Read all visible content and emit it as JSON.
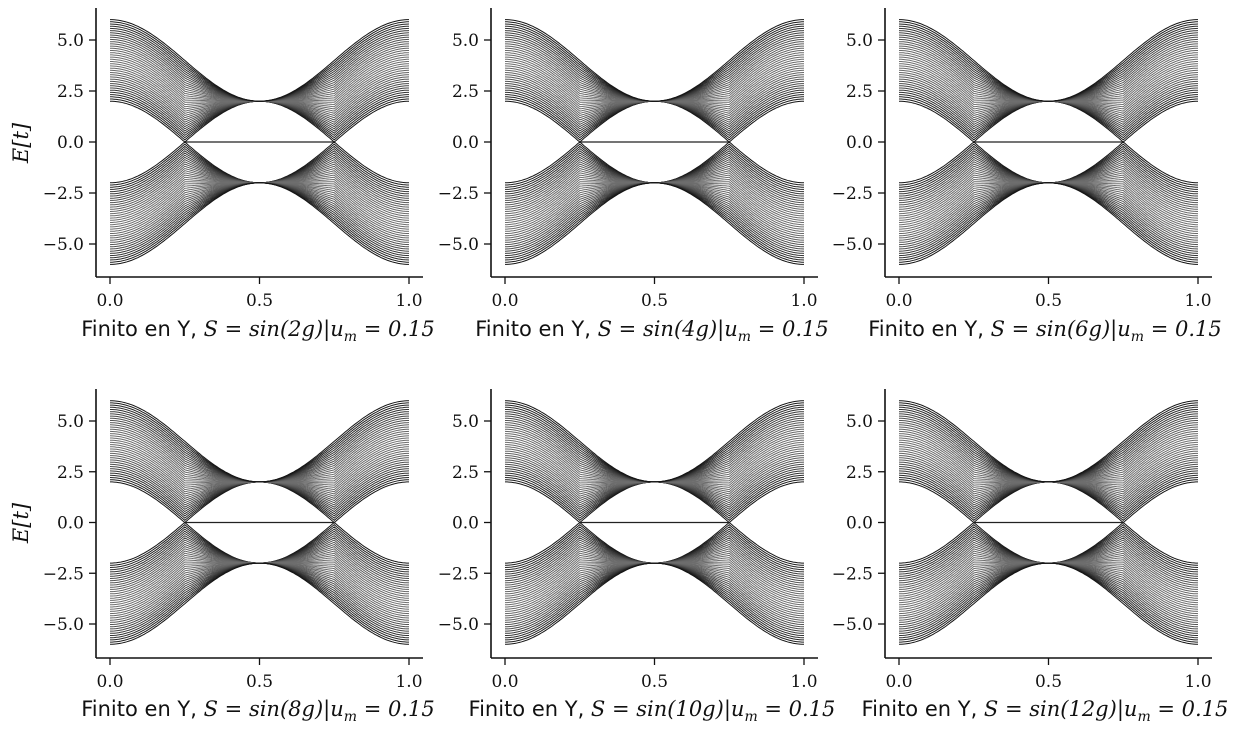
{
  "chart_data": [
    {
      "type": "line",
      "xlabel_prefix": "Finito en Y, ",
      "xlabel_math": "S = sin(2g)|u",
      "xlabel_sub": "m",
      "xlabel_suffix": " = 0.15",
      "ylabel": "E[t]",
      "harmonic": 2,
      "xlim": [
        0,
        1
      ],
      "ylim": [
        -6.6,
        6.6
      ],
      "xticks": [
        0.0,
        0.5,
        1.0
      ],
      "xtick_labels": [
        "0.0",
        "0.5",
        "1.0"
      ],
      "yticks": [
        5.0,
        2.5,
        0.0,
        -2.5,
        -5.0
      ],
      "ytick_labels": [
        "5.0",
        "2.5",
        "0.0",
        "−2.5",
        "−5.0"
      ],
      "band": {
        "inner_edge_center": 2.0,
        "inner_edge_outer": 2.0,
        "outer_edge_center": 2.0,
        "outer_edge_outer": 6.0,
        "gap_close_x": [
          0.25,
          0.75
        ]
      },
      "edge_state": {
        "value": 0.0,
        "x_range": [
          0.25,
          0.75
        ]
      },
      "line_color": "#000000"
    },
    {
      "type": "line",
      "xlabel_prefix": "Finito en Y, ",
      "xlabel_math": "S = sin(4g)|u",
      "xlabel_sub": "m",
      "xlabel_suffix": " = 0.15",
      "ylabel": "",
      "harmonic": 4,
      "xlim": [
        0,
        1
      ],
      "ylim": [
        -6.6,
        6.6
      ],
      "xticks": [
        0.0,
        0.5,
        1.0
      ],
      "xtick_labels": [
        "0.0",
        "0.5",
        "1.0"
      ],
      "yticks": [
        5.0,
        2.5,
        0.0,
        -2.5,
        -5.0
      ],
      "ytick_labels": [
        "5.0",
        "2.5",
        "0.0",
        "−2.5",
        "−5.0"
      ],
      "band": {
        "inner_edge_center": 2.0,
        "inner_edge_outer": 2.0,
        "outer_edge_center": 2.0,
        "outer_edge_outer": 6.0,
        "gap_close_x": [
          0.25,
          0.75
        ]
      },
      "edge_state": {
        "value": 0.0,
        "x_range": [
          0.25,
          0.75
        ]
      },
      "line_color": "#000000"
    },
    {
      "type": "line",
      "xlabel_prefix": "Finito en Y, ",
      "xlabel_math": "S = sin(6g)|u",
      "xlabel_sub": "m",
      "xlabel_suffix": " = 0.15",
      "ylabel": "",
      "harmonic": 6,
      "xlim": [
        0,
        1
      ],
      "ylim": [
        -6.6,
        6.6
      ],
      "xticks": [
        0.0,
        0.5,
        1.0
      ],
      "xtick_labels": [
        "0.0",
        "0.5",
        "1.0"
      ],
      "yticks": [
        5.0,
        2.5,
        0.0,
        -2.5,
        -5.0
      ],
      "ytick_labels": [
        "5.0",
        "2.5",
        "0.0",
        "−2.5",
        "−5.0"
      ],
      "band": {
        "inner_edge_center": 2.0,
        "inner_edge_outer": 2.0,
        "outer_edge_center": 2.0,
        "outer_edge_outer": 6.0,
        "gap_close_x": [
          0.25,
          0.75
        ]
      },
      "edge_state": {
        "value": 0.0,
        "x_range": [
          0.25,
          0.75
        ]
      },
      "line_color": "#000000"
    },
    {
      "type": "line",
      "xlabel_prefix": "Finito en Y, ",
      "xlabel_math": "S = sin(8g)|u",
      "xlabel_sub": "m",
      "xlabel_suffix": " = 0.15",
      "ylabel": "E[t]",
      "harmonic": 8,
      "xlim": [
        0,
        1
      ],
      "ylim": [
        -6.6,
        6.6
      ],
      "xticks": [
        0.0,
        0.5,
        1.0
      ],
      "xtick_labels": [
        "0.0",
        "0.5",
        "1.0"
      ],
      "yticks": [
        5.0,
        2.5,
        0.0,
        -2.5,
        -5.0
      ],
      "ytick_labels": [
        "5.0",
        "2.5",
        "0.0",
        "−2.5",
        "−5.0"
      ],
      "band": {
        "inner_edge_center": 2.0,
        "inner_edge_outer": 2.0,
        "outer_edge_center": 2.0,
        "outer_edge_outer": 6.0,
        "gap_close_x": [
          0.25,
          0.75
        ]
      },
      "edge_state": {
        "value": 0.0,
        "x_range": [
          0.25,
          0.75
        ]
      },
      "line_color": "#000000"
    },
    {
      "type": "line",
      "xlabel_prefix": "Finito en Y, ",
      "xlabel_math": "S = sin(10g)|u",
      "xlabel_sub": "m",
      "xlabel_suffix": " = 0.15",
      "ylabel": "",
      "harmonic": 10,
      "xlim": [
        0,
        1
      ],
      "ylim": [
        -6.6,
        6.6
      ],
      "xticks": [
        0.0,
        0.5,
        1.0
      ],
      "xtick_labels": [
        "0.0",
        "0.5",
        "1.0"
      ],
      "yticks": [
        5.0,
        2.5,
        0.0,
        -2.5,
        -5.0
      ],
      "ytick_labels": [
        "5.0",
        "2.5",
        "0.0",
        "−2.5",
        "−5.0"
      ],
      "band": {
        "inner_edge_center": 2.0,
        "inner_edge_outer": 2.0,
        "outer_edge_center": 2.0,
        "outer_edge_outer": 6.0,
        "gap_close_x": [
          0.25,
          0.75
        ]
      },
      "edge_state": {
        "value": 0.0,
        "x_range": [
          0.25,
          0.75
        ]
      },
      "line_color": "#000000"
    },
    {
      "type": "line",
      "xlabel_prefix": "Finito en Y, ",
      "xlabel_math": "S = sin(12g)|u",
      "xlabel_sub": "m",
      "xlabel_suffix": " = 0.15",
      "ylabel": "",
      "harmonic": 12,
      "xlim": [
        0,
        1
      ],
      "ylim": [
        -6.6,
        6.6
      ],
      "xticks": [
        0.0,
        0.5,
        1.0
      ],
      "xtick_labels": [
        "0.0",
        "0.5",
        "1.0"
      ],
      "yticks": [
        5.0,
        2.5,
        0.0,
        -2.5,
        -5.0
      ],
      "ytick_labels": [
        "5.0",
        "2.5",
        "0.0",
        "−2.5",
        "−5.0"
      ],
      "band": {
        "inner_edge_center": 2.0,
        "inner_edge_outer": 2.0,
        "outer_edge_center": 2.0,
        "outer_edge_outer": 6.0,
        "gap_close_x": [
          0.25,
          0.75
        ]
      },
      "edge_state": {
        "value": 0.0,
        "x_range": [
          0.25,
          0.75
        ]
      },
      "line_color": "#000000"
    }
  ]
}
